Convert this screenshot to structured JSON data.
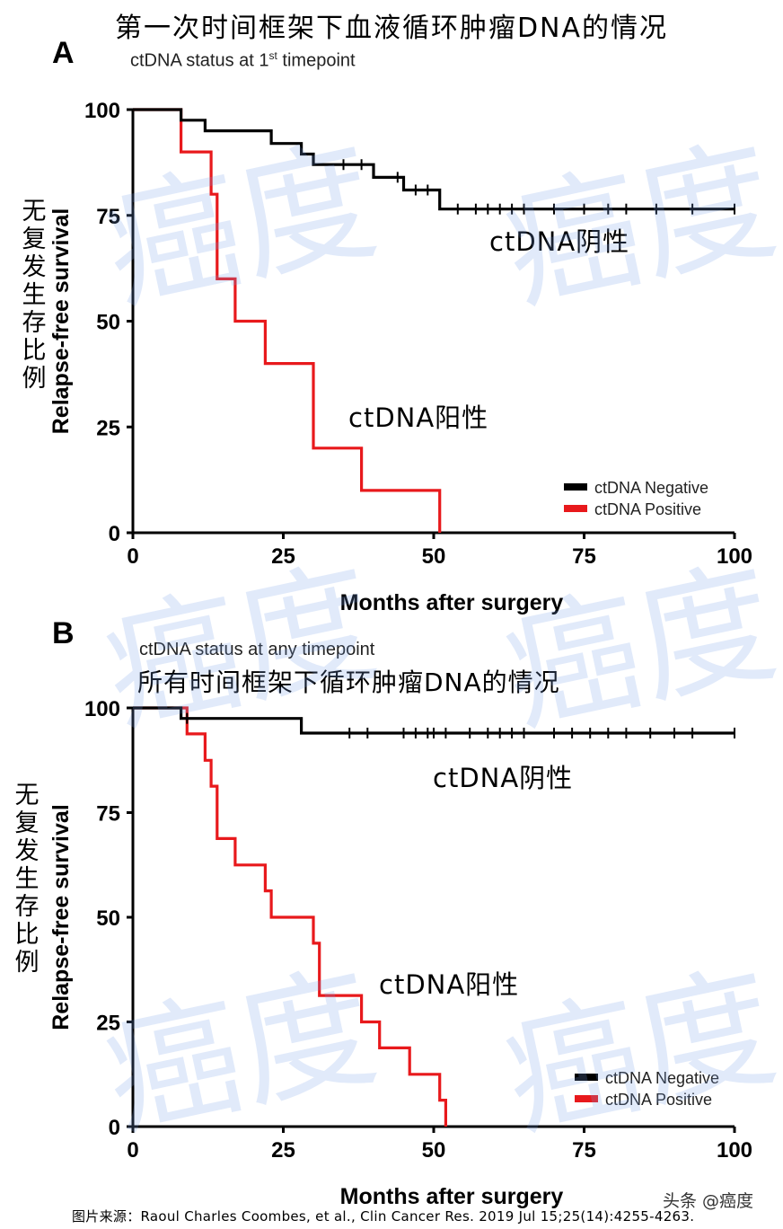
{
  "header": {
    "title": "第一次时间框架下血液循环肿瘤DNA的情况"
  },
  "panels": [
    {
      "letter": "A",
      "subtitle_main": "ctDNA status at 1",
      "subtitle_sup": "st",
      "subtitle_tail": " timepoint",
      "subtitle_cn": "",
      "ylabel_cn": [
        "无",
        "复",
        "发",
        "生",
        "存",
        "比",
        "例"
      ],
      "annot_negative": "ctDNA阴性",
      "annot_positive": "ctDNA阳性"
    },
    {
      "letter": "B",
      "subtitle_main": "ctDNA status at any timepoint",
      "subtitle_sup": "",
      "subtitle_tail": "",
      "subtitle_cn": "所有时间框架下循环肿瘤DNA的情况",
      "ylabel_cn": [
        "无",
        "复",
        "发",
        "生",
        "存",
        "比",
        "例"
      ],
      "annot_negative": "ctDNA阴性",
      "annot_positive": "ctDNA阳性"
    }
  ],
  "footer": {
    "source": "图片来源：Raoul Charles Coombes, et al., Clin Cancer Res. 2019 Jul 15;25(14):4255-4263.",
    "brand": "头条 @癌度"
  },
  "watermark": {
    "text": "癌度"
  },
  "colors": {
    "negative": "#000000",
    "positive": "#e8191c",
    "watermark": "#a9c0ec"
  },
  "chart_data": [
    {
      "type": "line",
      "title": "ctDNA status at 1st timepoint",
      "xlabel": "Months after surgery",
      "ylabel": "Relapse-free survival",
      "xlim": [
        0,
        100
      ],
      "ylim": [
        0,
        100
      ],
      "xticks": [
        0,
        25,
        50,
        75,
        100
      ],
      "yticks": [
        0,
        25,
        50,
        75,
        100
      ],
      "legend_position": "bottom-right",
      "series": [
        {
          "name": "ctDNA Negative",
          "color": "#000000",
          "steps": [
            [
              0,
              100
            ],
            [
              8,
              100
            ],
            [
              8,
              97.5
            ],
            [
              12,
              97.5
            ],
            [
              12,
              95
            ],
            [
              23,
              95
            ],
            [
              23,
              92
            ],
            [
              28,
              92
            ],
            [
              28,
              89.5
            ],
            [
              30,
              89.5
            ],
            [
              30,
              87
            ],
            [
              40,
              87
            ],
            [
              40,
              84
            ],
            [
              45,
              84
            ],
            [
              45,
              81
            ],
            [
              51,
              81
            ],
            [
              51,
              76.5
            ],
            [
              100,
              76.5
            ]
          ],
          "censor_x": [
            35,
            38,
            44,
            47,
            49,
            54,
            57,
            59,
            61,
            63,
            65,
            70,
            75,
            79,
            82,
            87,
            93,
            100
          ]
        },
        {
          "name": "ctDNA Positive",
          "color": "#e8191c",
          "steps": [
            [
              0,
              100
            ],
            [
              8,
              100
            ],
            [
              8,
              90
            ],
            [
              13,
              90
            ],
            [
              13,
              80
            ],
            [
              14,
              80
            ],
            [
              14,
              60
            ],
            [
              17,
              60
            ],
            [
              17,
              50
            ],
            [
              22,
              50
            ],
            [
              22,
              40
            ],
            [
              30,
              40
            ],
            [
              30,
              20
            ],
            [
              38,
              20
            ],
            [
              38,
              10
            ],
            [
              51,
              10
            ],
            [
              51,
              0
            ]
          ],
          "censor_x": []
        }
      ]
    },
    {
      "type": "line",
      "title": "ctDNA status at any timepoint",
      "xlabel": "Months after surgery",
      "ylabel": "Relapse-free survival",
      "xlim": [
        0,
        100
      ],
      "ylim": [
        0,
        100
      ],
      "xticks": [
        0,
        25,
        50,
        75,
        100
      ],
      "yticks": [
        0,
        25,
        50,
        75,
        100
      ],
      "legend_position": "bottom-right",
      "series": [
        {
          "name": "ctDNA Negative",
          "color": "#000000",
          "steps": [
            [
              0,
              100
            ],
            [
              8,
              100
            ],
            [
              8,
              97.5
            ],
            [
              28,
              97.5
            ],
            [
              28,
              94
            ],
            [
              100,
              94
            ]
          ],
          "censor_x": [
            9,
            36,
            39,
            45,
            47,
            49,
            50,
            52,
            56,
            59,
            61,
            63,
            65,
            70,
            73,
            76,
            79,
            82,
            86,
            90,
            93,
            100
          ]
        },
        {
          "name": "ctDNA Positive",
          "color": "#e8191c",
          "steps": [
            [
              0,
              100
            ],
            [
              9,
              100
            ],
            [
              9,
              93.8
            ],
            [
              12,
              93.8
            ],
            [
              12,
              87.5
            ],
            [
              13,
              87.5
            ],
            [
              13,
              81.3
            ],
            [
              14,
              81.3
            ],
            [
              14,
              68.8
            ],
            [
              17,
              68.8
            ],
            [
              17,
              62.5
            ],
            [
              22,
              62.5
            ],
            [
              22,
              56.3
            ],
            [
              23,
              56.3
            ],
            [
              23,
              50
            ],
            [
              30,
              50
            ],
            [
              30,
              43.8
            ],
            [
              31,
              43.8
            ],
            [
              31,
              31.3
            ],
            [
              38,
              31.3
            ],
            [
              38,
              25
            ],
            [
              41,
              25
            ],
            [
              41,
              18.8
            ],
            [
              46,
              18.8
            ],
            [
              46,
              12.5
            ],
            [
              51,
              12.5
            ],
            [
              51,
              6.3
            ],
            [
              52,
              6.3
            ],
            [
              52,
              0
            ]
          ],
          "censor_x": []
        }
      ]
    }
  ]
}
